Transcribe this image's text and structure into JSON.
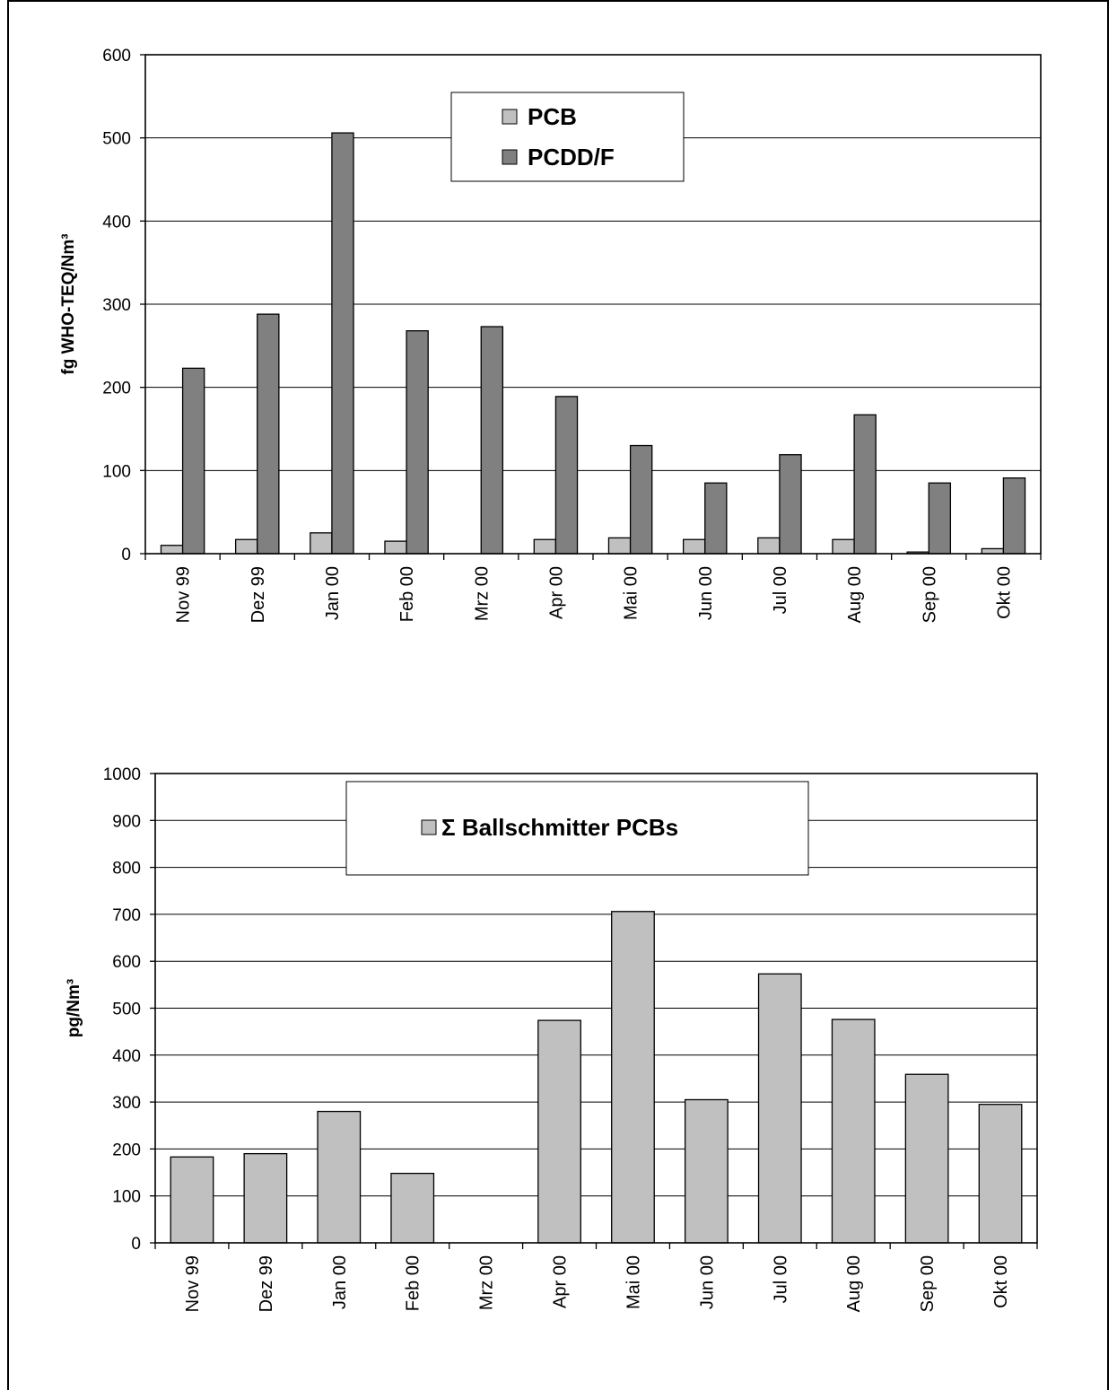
{
  "chart_data": [
    {
      "type": "bar",
      "categories": [
        "Nov 99",
        "Dez 99",
        "Jan 00",
        "Feb 00",
        "Mrz 00",
        "Apr 00",
        "Mai 00",
        "Jun 00",
        "Jul 00",
        "Aug 00",
        "Sep 00",
        "Okt 00"
      ],
      "series": [
        {
          "name": "PCB",
          "color": "#c0c0c0",
          "values": [
            10,
            17,
            25,
            15,
            null,
            17,
            19,
            17,
            19,
            17,
            2,
            6
          ]
        },
        {
          "name": "PCDD/F",
          "color": "#808080",
          "values": [
            223,
            288,
            506,
            268,
            273,
            189,
            130,
            85,
            119,
            167,
            85,
            91
          ]
        }
      ],
      "title": "",
      "xlabel": "",
      "ylabel": "fg WHO-TEQ/Nm³",
      "ylim": [
        0,
        600
      ],
      "yticks": [
        0,
        100,
        200,
        300,
        400,
        500,
        600
      ],
      "grid": true,
      "legend": "top-center"
    },
    {
      "type": "bar",
      "categories": [
        "Nov 99",
        "Dez 99",
        "Jan 00",
        "Feb 00",
        "Mrz 00",
        "Apr 00",
        "Mai 00",
        "Jun 00",
        "Jul 00",
        "Aug 00",
        "Sep 00",
        "Okt 00"
      ],
      "series": [
        {
          "name": "Σ  Ballschmitter PCBs",
          "color": "#c0c0c0",
          "values": [
            183,
            190,
            280,
            148,
            null,
            474,
            706,
            305,
            573,
            476,
            359,
            295
          ]
        }
      ],
      "title": "",
      "xlabel": "",
      "ylabel": "pg/Nm³",
      "ylim": [
        0,
        1000
      ],
      "yticks": [
        0,
        100,
        200,
        300,
        400,
        500,
        600,
        700,
        800,
        900,
        1000
      ],
      "grid": true,
      "legend": "top-center"
    }
  ]
}
